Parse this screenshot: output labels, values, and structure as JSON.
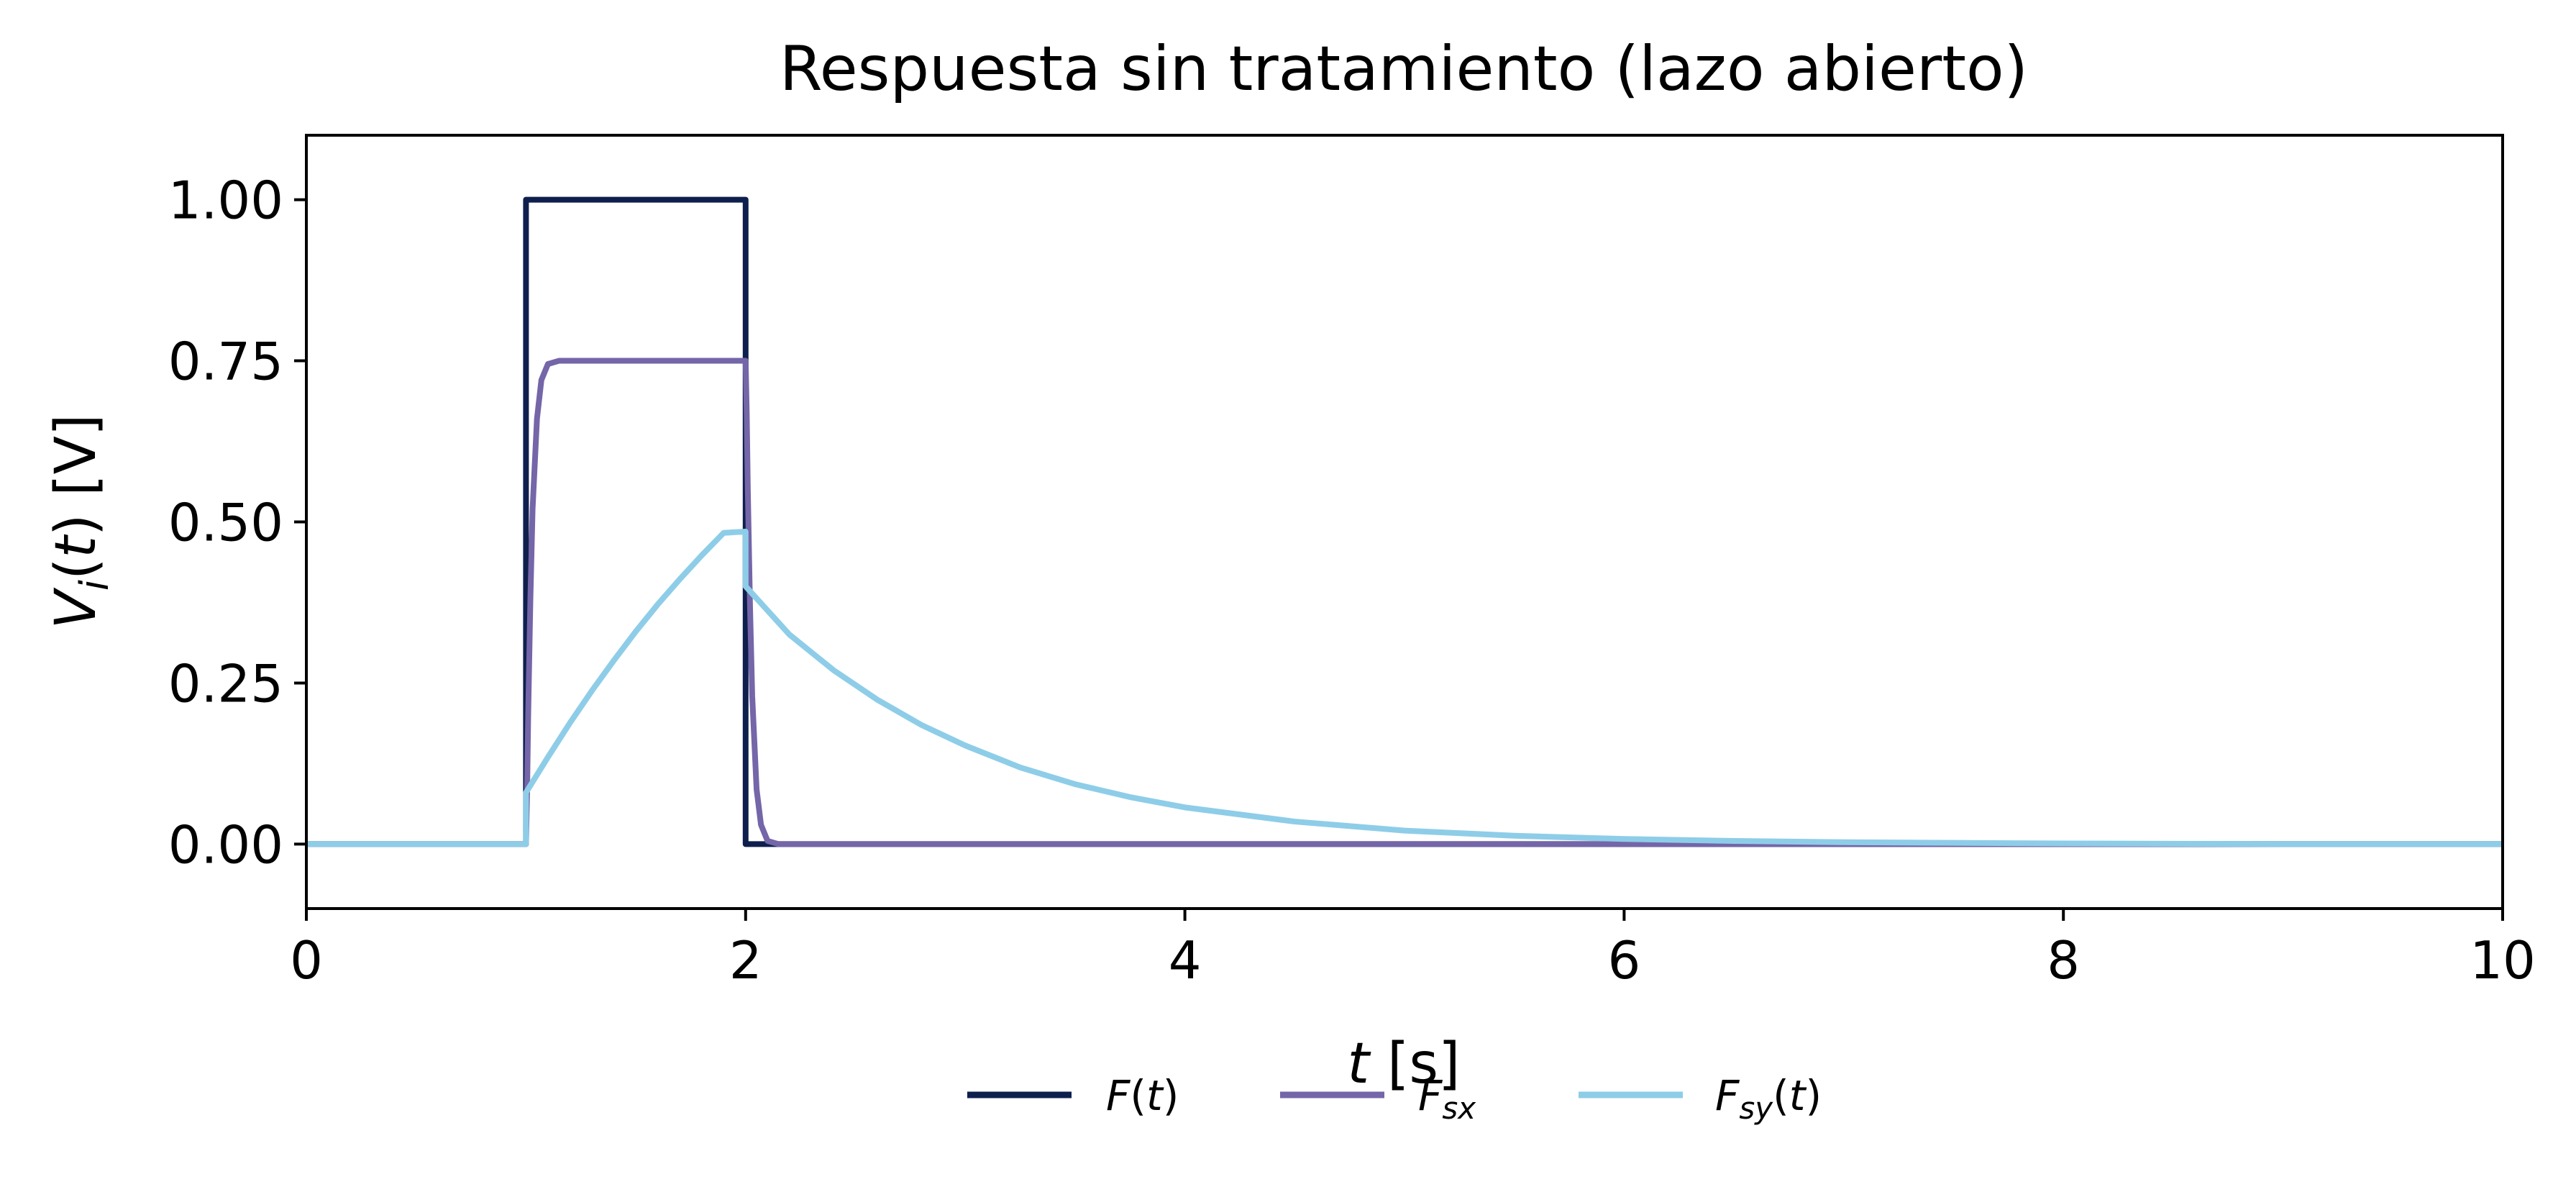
{
  "chart_data": {
    "type": "line",
    "title": "Respuesta sin tratamiento (lazo abierto)",
    "xlabel": "t [s]",
    "ylabel": "V_i(t) [V]",
    "xlim": [
      0,
      10
    ],
    "ylim": [
      -0.1,
      1.1
    ],
    "xticks": [
      0,
      2,
      4,
      6,
      8,
      10
    ],
    "xtick_labels": [
      "0",
      "2",
      "4",
      "6",
      "8",
      "10"
    ],
    "yticks": [
      0.0,
      0.25,
      0.5,
      0.75,
      1.0
    ],
    "ytick_labels": [
      "0.00",
      "0.25",
      "0.50",
      "0.75",
      "1.00"
    ],
    "grid": false,
    "legend_position": "bottom-center",
    "series": [
      {
        "name": "F(t)",
        "color": "#0f1f4d",
        "x": [
          0,
          1.0,
          1.0,
          2.0,
          2.0,
          10
        ],
        "y": [
          0,
          0,
          1.0,
          1.0,
          0,
          0
        ]
      },
      {
        "name": "F_sx",
        "color": "#7466a8",
        "x": [
          0,
          1.0,
          1.005,
          1.01,
          1.02,
          1.03,
          1.05,
          1.07,
          1.1,
          1.15,
          1.2,
          1.5,
          2.0,
          2.005,
          2.01,
          2.02,
          2.03,
          2.05,
          2.07,
          2.1,
          2.15,
          2.2,
          10
        ],
        "y": [
          0,
          0,
          0.08,
          0.2,
          0.38,
          0.52,
          0.66,
          0.72,
          0.745,
          0.75,
          0.75,
          0.75,
          0.75,
          0.67,
          0.55,
          0.37,
          0.23,
          0.085,
          0.03,
          0.005,
          0.0,
          0.0,
          0.0
        ]
      },
      {
        "name": "F_sy(t)",
        "color": "#8ecde8",
        "x": [
          0,
          1.0,
          1.0,
          1.1,
          1.2,
          1.3,
          1.4,
          1.5,
          1.6,
          1.7,
          1.8,
          1.9,
          2.0,
          2.0,
          2.2,
          2.4,
          2.6,
          2.8,
          3.0,
          3.25,
          3.5,
          3.75,
          4.0,
          4.5,
          5.0,
          5.5,
          6.0,
          6.5,
          7.0,
          7.5,
          8.0,
          9.0,
          10.0
        ],
        "y": [
          0,
          0,
          0.08,
          0.135,
          0.188,
          0.238,
          0.285,
          0.33,
          0.372,
          0.411,
          0.448,
          0.483,
          0.485,
          0.4,
          0.325,
          0.27,
          0.224,
          0.185,
          0.153,
          0.119,
          0.093,
          0.073,
          0.057,
          0.035,
          0.021,
          0.013,
          0.008,
          0.005,
          0.003,
          0.002,
          0.001,
          0.0,
          0.0
        ]
      }
    ]
  }
}
